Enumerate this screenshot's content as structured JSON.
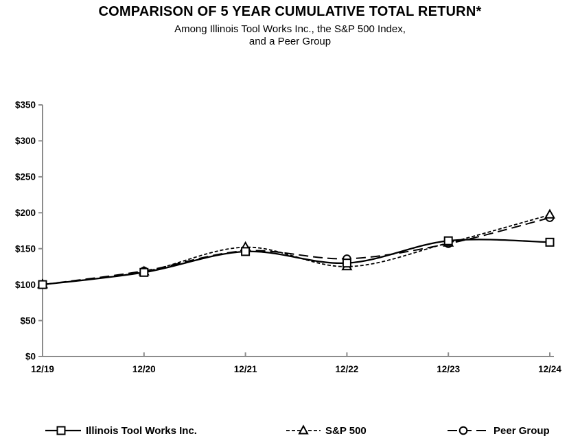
{
  "header": {
    "title": "COMPARISON OF 5 YEAR CUMULATIVE TOTAL RETURN*",
    "subtitle_line1": "Among Illinois Tool Works Inc., the S&P 500 Index,",
    "subtitle_line2": "and a Peer Group"
  },
  "chart_data": {
    "type": "line",
    "title": "COMPARISON OF 5 YEAR CUMULATIVE TOTAL RETURN*",
    "subtitle": "Among Illinois Tool Works Inc., the S&P 500 Index, and a Peer Group",
    "x_labels": [
      "12/19",
      "12/20",
      "12/21",
      "12/22",
      "12/23",
      "12/24"
    ],
    "y_tick_labels": [
      "$0",
      "$50",
      "$100",
      "$150",
      "$200",
      "$250",
      "$300",
      "$350"
    ],
    "y_tick_values": [
      0,
      50,
      100,
      150,
      200,
      250,
      300,
      350
    ],
    "ylim": [
      0,
      350
    ],
    "grid": false,
    "legend_position": "bottom",
    "series": [
      {
        "name": "Illinois Tool Works Inc.",
        "marker": "square",
        "line_style": "solid",
        "values": [
          100,
          117,
          146,
          130,
          161,
          159
        ]
      },
      {
        "name": "S&P 500",
        "marker": "triangle",
        "line_style": "dashed",
        "values": [
          100,
          118,
          152,
          125,
          158,
          197
        ]
      },
      {
        "name": "Peer Group",
        "marker": "circle",
        "line_style": "long-dash",
        "values": [
          100,
          119,
          147,
          136,
          157,
          193
        ]
      }
    ],
    "colors": {
      "series_line": "#000000",
      "marker_fill": "#ffffff",
      "axis": "#8c8c8c",
      "text": "#000000"
    }
  }
}
